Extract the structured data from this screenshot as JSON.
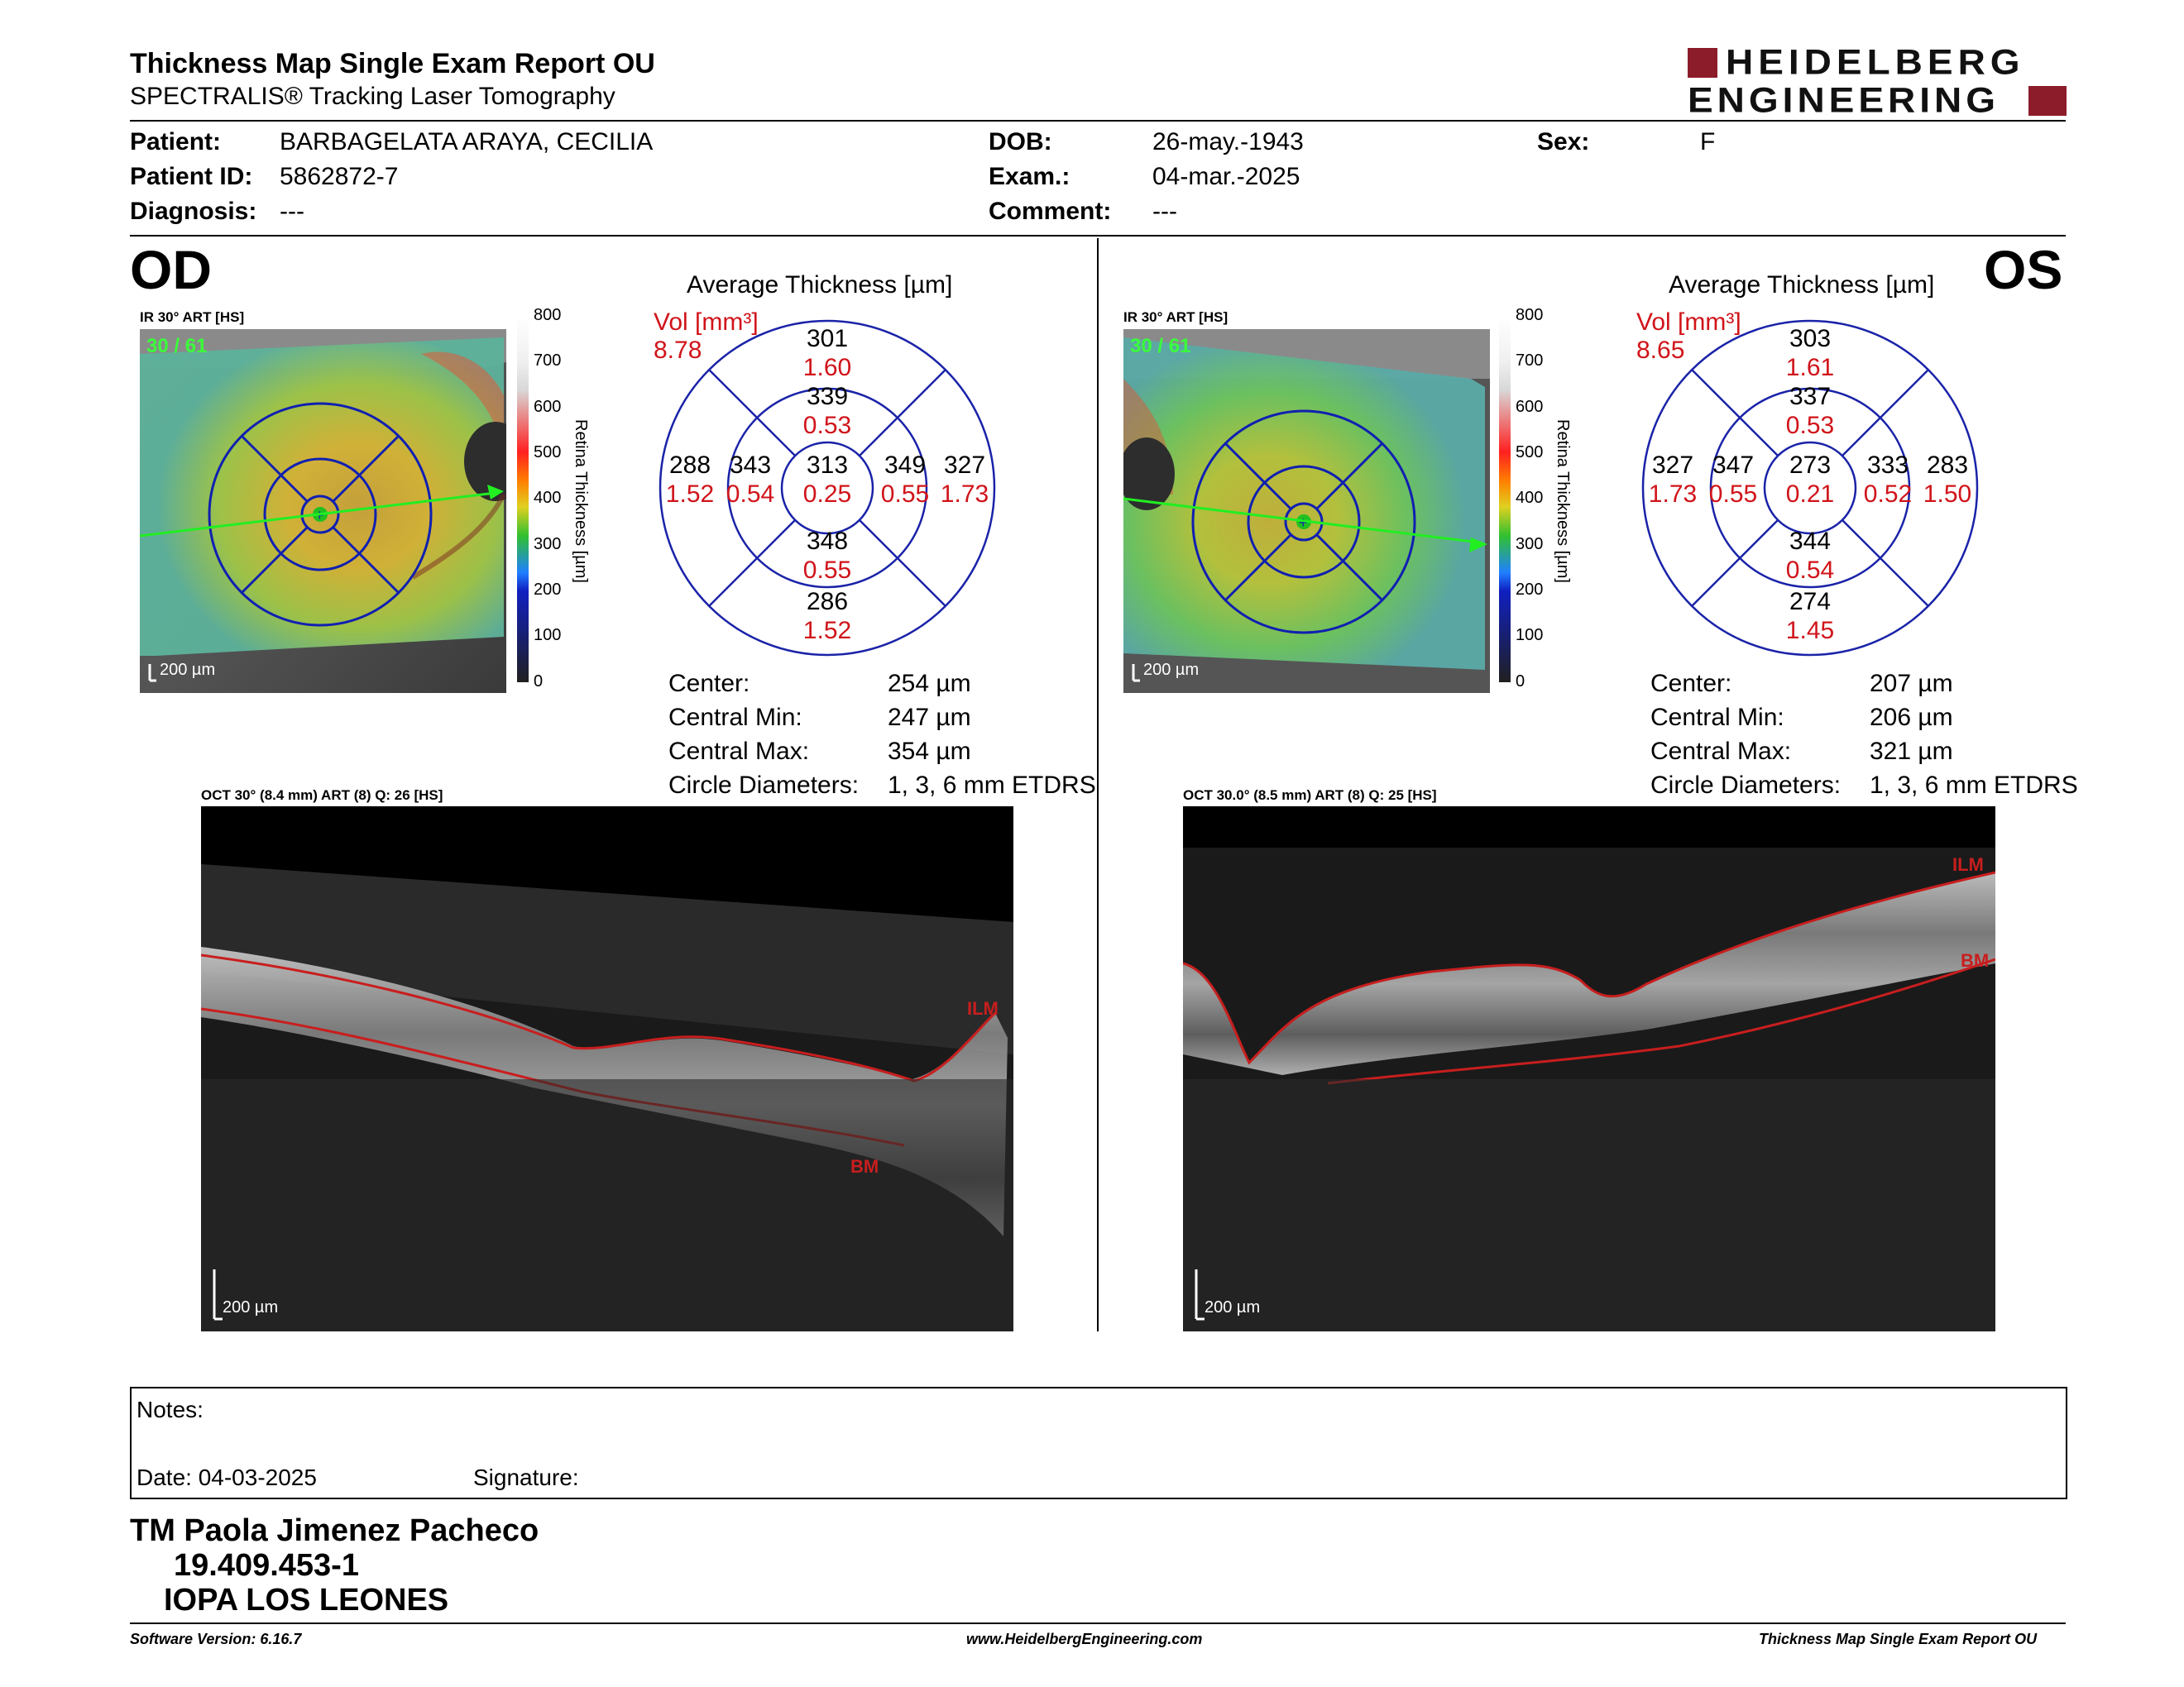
{
  "header": {
    "title": "Thickness Map Single Exam Report OU",
    "subtitle": "SPECTRALIS® Tracking Laser Tomography",
    "brand_line1": "HEIDELBERG",
    "brand_line2": "ENGINEERING",
    "brand_color": "#8c1c2a"
  },
  "patient": {
    "patient_label": "Patient:",
    "patient_value": "BARBAGELATA ARAYA, CECILIA",
    "id_label": "Patient ID:",
    "id_value": "5862872-7",
    "diagnosis_label": "Diagnosis:",
    "diagnosis_value": "---",
    "dob_label": "DOB:",
    "dob_value": "26-may.-1943",
    "exam_label": "Exam.:",
    "exam_value": "04-mar.-2025",
    "comment_label": "Comment:",
    "comment_value": "---",
    "sex_label": "Sex:",
    "sex_value": "F"
  },
  "od": {
    "eye": "OD",
    "ir_caption": "IR 30° ART [HS]",
    "frame_counter": "30 / 61",
    "scale_bar": "200 µm",
    "colorbar_ticks": [
      "800",
      "700",
      "600",
      "500",
      "400",
      "300",
      "200",
      "100",
      "0"
    ],
    "colorbar_label": "Retina Thickness [µm]",
    "avg_title": "Average Thickness [µm]",
    "vol_label": "Vol [mm³]",
    "vol_value": "8.78",
    "sectors": {
      "outer_sup": "301",
      "outer_sup_vol": "1.60",
      "inner_sup": "339",
      "inner_sup_vol": "0.53",
      "outer_left": "288",
      "outer_left_vol": "1.52",
      "inner_left": "343",
      "inner_left_vol": "0.54",
      "center": "313",
      "center_vol": "0.25",
      "inner_right": "349",
      "inner_right_vol": "0.55",
      "outer_right": "327",
      "outer_right_vol": "1.73",
      "inner_inf": "348",
      "inner_inf_vol": "0.55",
      "outer_inf": "286",
      "outer_inf_vol": "1.52"
    },
    "stats": {
      "center_label": "Center:",
      "center_value": "254 µm",
      "min_label": "Central Min:",
      "min_value": "247 µm",
      "max_label": "Central Max:",
      "max_value": "354 µm",
      "diam_label": "Circle Diameters:",
      "diam_value": "1, 3, 6 mm ETDRS"
    },
    "oct_caption": "OCT 30° (8.4 mm) ART (8) Q: 26 [HS]",
    "oct_scale": "200 µm",
    "ilm_label": "ILM",
    "bm_label": "BM"
  },
  "os": {
    "eye": "OS",
    "ir_caption": "IR 30° ART [HS]",
    "frame_counter": "30 / 61",
    "scale_bar": "200 µm",
    "colorbar_ticks": [
      "800",
      "700",
      "600",
      "500",
      "400",
      "300",
      "200",
      "100",
      "0"
    ],
    "colorbar_label": "Retina Thickness [µm]",
    "avg_title": "Average Thickness [µm]",
    "vol_label": "Vol [mm³]",
    "vol_value": "8.65",
    "sectors": {
      "outer_sup": "303",
      "outer_sup_vol": "1.61",
      "inner_sup": "337",
      "inner_sup_vol": "0.53",
      "outer_left": "327",
      "outer_left_vol": "1.73",
      "inner_left": "347",
      "inner_left_vol": "0.55",
      "center": "273",
      "center_vol": "0.21",
      "inner_right": "333",
      "inner_right_vol": "0.52",
      "outer_right": "283",
      "outer_right_vol": "1.50",
      "inner_inf": "344",
      "inner_inf_vol": "0.54",
      "outer_inf": "274",
      "outer_inf_vol": "1.45"
    },
    "stats": {
      "center_label": "Center:",
      "center_value": "207 µm",
      "min_label": "Central Min:",
      "min_value": "206 µm",
      "max_label": "Central Max:",
      "max_value": "321 µm",
      "diam_label": "Circle Diameters:",
      "diam_value": "1, 3, 6 mm ETDRS"
    },
    "oct_caption": "OCT 30.0° (8.5 mm) ART (8) Q: 25 [HS]",
    "oct_scale": "200 µm",
    "ilm_label": "ILM",
    "bm_label": "BM"
  },
  "notes": {
    "notes_label": "Notes:",
    "date_label": "Date: 04-03-2025",
    "signature_label": "Signature:"
  },
  "signoff": {
    "name": "TM Paola Jimenez Pacheco",
    "rut": "19.409.453-1",
    "institution": "IOPA LOS LEONES"
  },
  "footer": {
    "software": "Software Version: 6.16.7",
    "website": "www.HeidelbergEngineering.com",
    "report": "Thickness Map Single Exam Report OU"
  }
}
